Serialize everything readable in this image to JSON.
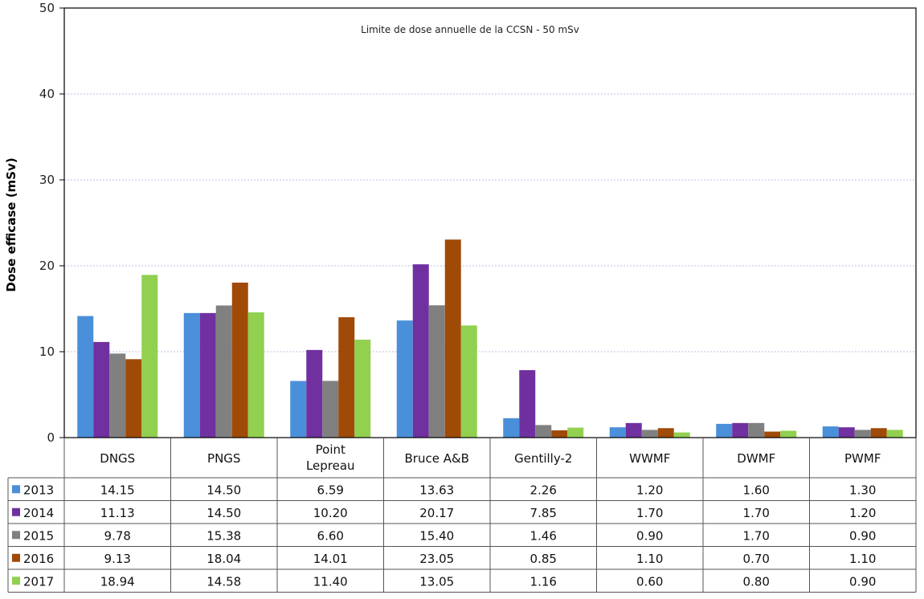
{
  "chart_data": {
    "type": "bar",
    "ylabel": "Dose efficase (mSv)",
    "xlabel": "",
    "ylim": [
      0,
      50
    ],
    "yticks": [
      0,
      10,
      20,
      30,
      40,
      50
    ],
    "grid": true,
    "legend": "table-left",
    "annotation": "Limite de dose annuelle de la CCSN - 50 mSv",
    "categories": [
      "DNGS",
      "PNGS",
      "Point Lepreau",
      "Bruce A&B",
      "Gentilly-2",
      "WWMF",
      "DWMF",
      "PWMF"
    ],
    "series": [
      {
        "name": "2013",
        "color": "#4a8fd9",
        "values": [
          14.15,
          14.5,
          6.59,
          13.63,
          2.26,
          1.2,
          1.6,
          1.3
        ],
        "labels": [
          "14.15",
          "14.50",
          "6.59",
          "13.63",
          "2.26",
          "1.20",
          "1.60",
          "1.30"
        ]
      },
      {
        "name": "2014",
        "color": "#7030a0",
        "values": [
          11.13,
          14.5,
          10.2,
          20.17,
          7.85,
          1.7,
          1.7,
          1.2
        ],
        "labels": [
          "11.13",
          "14.50",
          "10.20",
          "20.17",
          "7.85",
          "1.70",
          "1.70",
          "1.20"
        ]
      },
      {
        "name": "2015",
        "color": "#808080",
        "values": [
          9.78,
          15.38,
          6.6,
          15.4,
          1.46,
          0.9,
          1.7,
          0.9
        ],
        "labels": [
          "9.78",
          "15.38",
          "6.60",
          "15.40",
          "1.46",
          "0.90",
          "1.70",
          "0.90"
        ]
      },
      {
        "name": "2016",
        "color": "#a04a08",
        "values": [
          9.13,
          18.04,
          14.01,
          23.05,
          0.85,
          1.1,
          0.7,
          1.1
        ],
        "labels": [
          "9.13",
          "18.04",
          "14.01",
          "23.05",
          "0.85",
          "1.10",
          "0.70",
          "1.10"
        ]
      },
      {
        "name": "2017",
        "color": "#92d050",
        "values": [
          18.94,
          14.58,
          11.4,
          13.05,
          1.16,
          0.6,
          0.8,
          0.9
        ],
        "labels": [
          "18.94",
          "14.58",
          "11.40",
          "13.05",
          "1.16",
          "0.60",
          "0.80",
          "0.90"
        ]
      }
    ]
  }
}
